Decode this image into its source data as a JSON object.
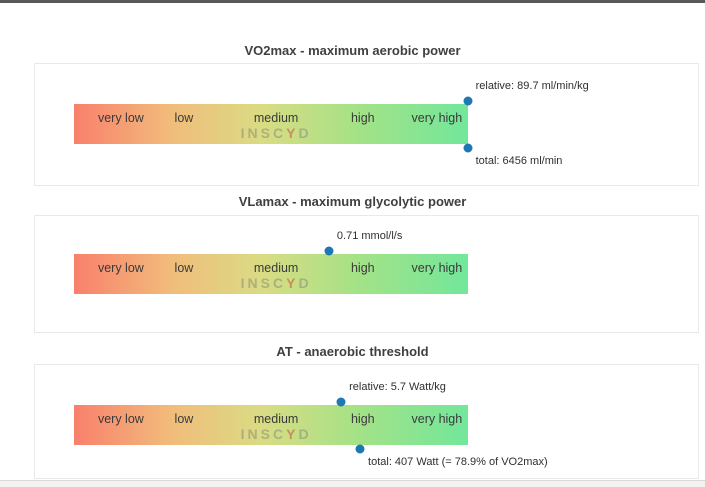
{
  "page": {
    "topbar_color": "#58585a",
    "panel_background": "#ffffff",
    "marker_dot_color": "#1f77b4",
    "gradient_stops": [
      "#f9806c",
      "#f1bd7b",
      "#d9dc83",
      "#a4e287",
      "#72e79b"
    ]
  },
  "scale_labels": [
    "very low",
    "low",
    "medium",
    "high",
    "very high"
  ],
  "watermark_parts": {
    "pre": "INSC",
    "y": "Y",
    "post": "D"
  },
  "gauges": [
    {
      "id": "vo2max",
      "title": "VO2max - maximum aerobic power",
      "markers": [
        {
          "text": "relative: 89.7 ml/min/kg",
          "pct": 99.9,
          "side": "top"
        },
        {
          "text": "total: 6456 ml/min",
          "pct": 99.9,
          "side": "bottom"
        }
      ]
    },
    {
      "id": "vlamax",
      "title": "VLamax - maximum glycolytic power",
      "markers": [
        {
          "text": "0.71 mmol/l/s",
          "pct": 64.7,
          "side": "top"
        }
      ]
    },
    {
      "id": "at",
      "title": "AT - anaerobic threshold",
      "markers": [
        {
          "text": "relative: 5.7 Watt/kg",
          "pct": 67.8,
          "side": "top"
        },
        {
          "text": "total: 407 Watt (= 78.9% of VO2max)",
          "pct": 72.6,
          "side": "bottom"
        }
      ]
    }
  ],
  "chart_data": [
    {
      "type": "gauge",
      "title": "VO2max - maximum aerobic power",
      "scale": [
        "very low",
        "low",
        "medium",
        "high",
        "very high"
      ],
      "markers": [
        {
          "label": "relative",
          "value": 89.7,
          "unit": "ml/min/kg",
          "position_pct": 99.9,
          "side": "top"
        },
        {
          "label": "total",
          "value": 6456,
          "unit": "ml/min",
          "position_pct": 99.9,
          "side": "bottom"
        }
      ]
    },
    {
      "type": "gauge",
      "title": "VLamax - maximum glycolytic power",
      "scale": [
        "very low",
        "low",
        "medium",
        "high",
        "very high"
      ],
      "markers": [
        {
          "label": "value",
          "value": 0.71,
          "unit": "mmol/l/s",
          "position_pct": 64.7,
          "side": "top"
        }
      ]
    },
    {
      "type": "gauge",
      "title": "AT - anaerobic threshold",
      "scale": [
        "very low",
        "low",
        "medium",
        "high",
        "very high"
      ],
      "markers": [
        {
          "label": "relative",
          "value": 5.7,
          "unit": "Watt/kg",
          "position_pct": 67.8,
          "side": "top"
        },
        {
          "label": "total",
          "value": 407,
          "unit": "Watt",
          "note": "= 78.9% of VO2max",
          "position_pct": 72.6,
          "side": "bottom"
        }
      ]
    }
  ]
}
